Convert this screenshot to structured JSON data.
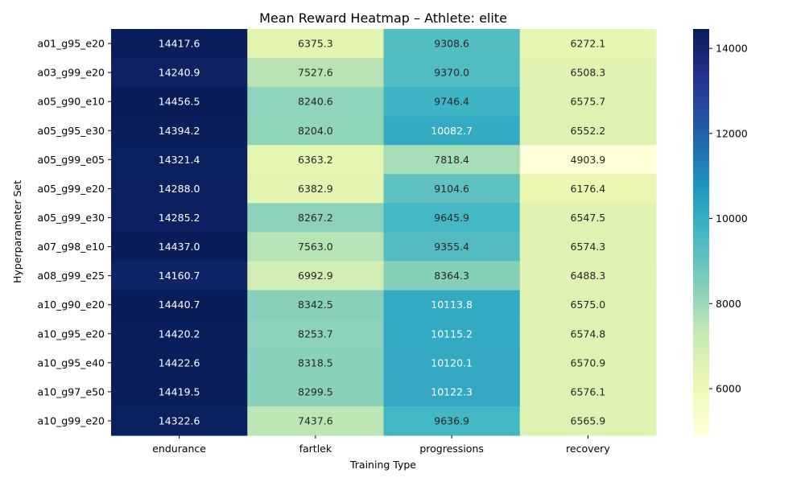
{
  "chart_data": {
    "type": "heatmap",
    "title": "Mean Reward Heatmap – Athlete: elite",
    "xlabel": "Training Type",
    "ylabel": "Hyperparameter Set",
    "columns": [
      "endurance",
      "fartlek",
      "progressions",
      "recovery"
    ],
    "rows": [
      "a01_g95_e20",
      "a03_g99_e20",
      "a05_g90_e10",
      "a05_g95_e30",
      "a05_g99_e05",
      "a05_g99_e20",
      "a05_g99_e30",
      "a07_g98_e10",
      "a08_g99_e25",
      "a10_g90_e20",
      "a10_g95_e20",
      "a10_g95_e40",
      "a10_g97_e50",
      "a10_g99_e20"
    ],
    "values": [
      [
        14417.6,
        6375.3,
        9308.6,
        6272.1
      ],
      [
        14240.9,
        7527.6,
        9370.0,
        6508.3
      ],
      [
        14456.5,
        8240.6,
        9746.4,
        6575.7
      ],
      [
        14394.2,
        8204.0,
        10082.7,
        6552.2
      ],
      [
        14321.4,
        6363.2,
        7818.4,
        4903.9
      ],
      [
        14288.0,
        6382.9,
        9104.6,
        6176.4
      ],
      [
        14285.2,
        8267.2,
        9645.9,
        6547.5
      ],
      [
        14437.0,
        7563.0,
        9355.4,
        6574.3
      ],
      [
        14160.7,
        6992.9,
        8364.3,
        6488.3
      ],
      [
        14440.7,
        8342.5,
        10113.8,
        6575.0
      ],
      [
        14420.2,
        8253.7,
        10115.2,
        6574.8
      ],
      [
        14422.6,
        8318.5,
        10120.1,
        6570.9
      ],
      [
        14419.5,
        8299.5,
        10122.3,
        6576.1
      ],
      [
        14322.6,
        7437.6,
        9636.9,
        6565.9
      ]
    ],
    "colormap": "YlGnBu",
    "value_format": "%.1f",
    "colorbar": {
      "range": [
        4903.9,
        14456.5
      ],
      "ticks": [
        6000,
        8000,
        10000,
        12000,
        14000
      ],
      "tick_labels": [
        "6000",
        "8000",
        "10000",
        "12000",
        "14000"
      ]
    }
  }
}
